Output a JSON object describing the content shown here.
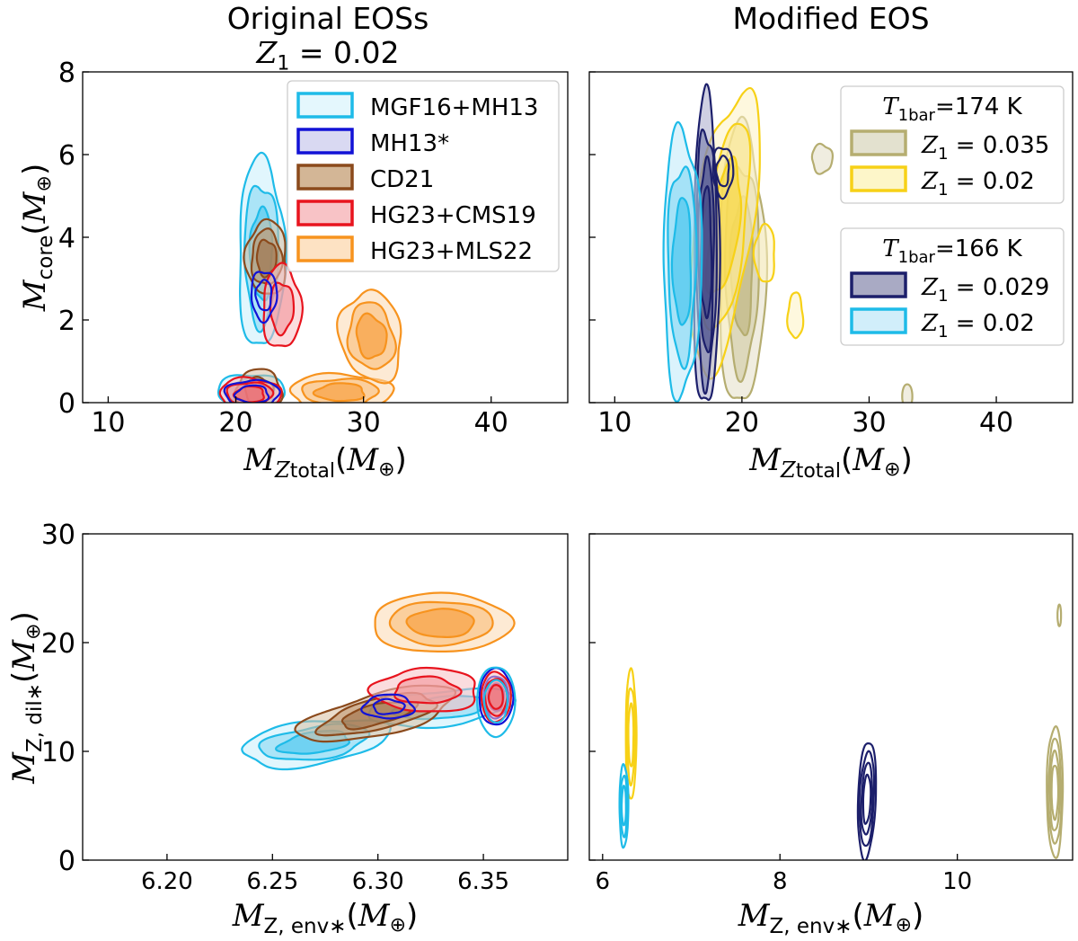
{
  "panel_titles": {
    "top_left_line1": "Original EOSs",
    "top_left_line2_var": "Z",
    "top_left_line2_sub": "1",
    "top_left_line2_rest": " = 0.02",
    "top_right": "Modified EOS"
  },
  "axis_text": {
    "m": "M",
    "core": "core",
    "oplus": "⊕",
    "z": "Z",
    "total": "total",
    "z_env": "Z, env",
    "z_dil": "Z, dil",
    "star": "∗"
  },
  "legend_tl": [
    {
      "label": "MGF16+MH13",
      "edge": "#1ebbe8",
      "fill": "#e4f7fd"
    },
    {
      "label": "MH13*",
      "edge": "#1212d6",
      "fill": "#d9d9f2"
    },
    {
      "label": "CD21",
      "edge": "#8b4a1c",
      "fill": "#d3b696"
    },
    {
      "label": "HG23+CMS19",
      "edge": "#e8141e",
      "fill": "#f8c3c6"
    },
    {
      "label": "HG23+MLS22",
      "edge": "#f7931e",
      "fill": "#fde2c3"
    }
  ],
  "legend_tr": {
    "groups": [
      {
        "title_var": "T",
        "title_sub": "1bar",
        "title_val": "=174 K",
        "entries": [
          {
            "var": "Z",
            "sub": "1",
            "val": " = 0.035",
            "edge": "#b5ad70",
            "fill": "#e3e1cf"
          },
          {
            "var": "Z",
            "sub": "1",
            "val": " = 0.02",
            "edge": "#f7d117",
            "fill": "#fdf6c9"
          }
        ]
      },
      {
        "title_var": "T",
        "title_sub": "1bar",
        "title_val": "=166 K",
        "entries": [
          {
            "var": "Z",
            "sub": "1",
            "val": " = 0.029",
            "edge": "#1c1f6b",
            "fill": "#a9aac4"
          },
          {
            "var": "Z",
            "sub": "1",
            "val": " = 0.02",
            "edge": "#1ebbe8",
            "fill": "#d1eefa"
          }
        ]
      }
    ]
  },
  "chart_data": [
    {
      "type": "contour",
      "panel": "top-left",
      "xlabel": "M_Z_total (M⊕)",
      "ylabel": "M_core (M⊕)",
      "xlim": [
        8,
        46
      ],
      "ylim": [
        0,
        8
      ],
      "xticks": [
        10,
        20,
        30,
        40
      ],
      "yticks": [
        0,
        2,
        4,
        6,
        8
      ],
      "legend": "top-right",
      "series": [
        {
          "name": "MGF16+MH13",
          "approx_peaks": [
            [
              21,
              0.1
            ],
            [
              22,
              4.5
            ]
          ]
        },
        {
          "name": "MH13*",
          "approx_peaks": [
            [
              22,
              2.6
            ],
            [
              21,
              0.1
            ]
          ]
        },
        {
          "name": "CD21",
          "approx_peaks": [
            [
              22,
              3.6
            ],
            [
              22,
              0.2
            ]
          ]
        },
        {
          "name": "HG23+CMS19",
          "approx_peaks": [
            [
              23,
              2.2
            ],
            [
              21,
              0.1
            ]
          ]
        },
        {
          "name": "HG23+MLS22",
          "approx_peaks": [
            [
              28,
              0.1
            ],
            [
              30,
              1.8
            ]
          ]
        }
      ]
    },
    {
      "type": "contour",
      "panel": "top-right",
      "xlabel": "M_Z_total (M⊕)",
      "ylabel": "",
      "xlim": [
        8,
        46
      ],
      "ylim": [
        0,
        8
      ],
      "xticks": [
        10,
        20,
        30,
        40
      ],
      "yticks": [
        0,
        2,
        4,
        6,
        8
      ],
      "legend": "top-right",
      "series": [
        {
          "name": "T1bar=174 K, Z1 = 0.035",
          "approx_peaks": [
            [
              20,
              2.3
            ]
          ]
        },
        {
          "name": "T1bar=174 K, Z1 = 0.02",
          "approx_peaks": [
            [
              19,
              3.8
            ]
          ]
        },
        {
          "name": "T1bar=166 K, Z1 = 0.029",
          "approx_peaks": [
            [
              17,
              2.6
            ]
          ]
        },
        {
          "name": "T1bar=166 K, Z1 = 0.02",
          "approx_peaks": [
            [
              15,
              3.5
            ]
          ]
        }
      ]
    },
    {
      "type": "contour",
      "panel": "bottom-left",
      "xlabel": "M_Z,env* (M⊕)",
      "ylabel": "M_Z,dil* (M⊕)",
      "xlim": [
        6.16,
        6.39
      ],
      "ylim": [
        0,
        30
      ],
      "xticks": [
        6.2,
        6.25,
        6.3,
        6.35
      ],
      "yticks": [
        0,
        10,
        20,
        30
      ],
      "series": [
        {
          "name": "MGF16+MH13",
          "approx_peaks": [
            [
              6.26,
              10.5
            ],
            [
              6.355,
              15
            ]
          ]
        },
        {
          "name": "MH13*",
          "approx_peaks": [
            [
              6.305,
              14
            ],
            [
              6.355,
              15
            ]
          ]
        },
        {
          "name": "CD21",
          "approx_peaks": [
            [
              6.28,
              12
            ],
            [
              6.355,
              15
            ]
          ]
        },
        {
          "name": "HG23+CMS19",
          "approx_peaks": [
            [
              6.33,
              15.5
            ],
            [
              6.355,
              15
            ]
          ]
        },
        {
          "name": "HG23+MLS22",
          "approx_peaks": [
            [
              6.355,
              22
            ]
          ]
        }
      ]
    },
    {
      "type": "contour",
      "panel": "bottom-right",
      "xlabel": "M_Z,env* (M⊕)",
      "ylabel": "",
      "xlim": [
        5.85,
        11.3
      ],
      "ylim": [
        0,
        30
      ],
      "xticks": [
        6,
        8,
        10
      ],
      "yticks": [
        0,
        10,
        20,
        30
      ],
      "series": [
        {
          "name": "T1bar=174 K, Z1 = 0.02",
          "approx_peaks": [
            [
              6.3,
              11
            ]
          ]
        },
        {
          "name": "T1bar=166 K, Z1 = 0.02",
          "approx_peaks": [
            [
              6.2,
              5
            ]
          ]
        },
        {
          "name": "T1bar=166 K, Z1 = 0.029",
          "approx_peaks": [
            [
              9.0,
              6
            ]
          ]
        },
        {
          "name": "T1bar=174 K, Z1 = 0.035",
          "approx_peaks": [
            [
              11.1,
              6
            ]
          ]
        }
      ]
    }
  ]
}
